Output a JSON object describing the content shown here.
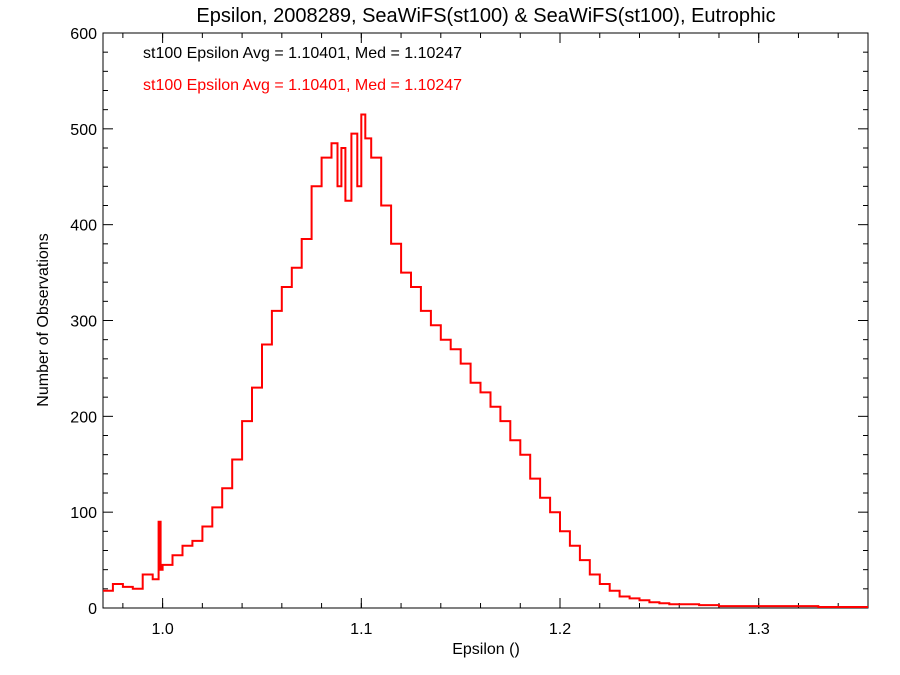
{
  "chart_data": {
    "type": "line",
    "title": "Epsilon, 2008289, SeaWiFS(st100) & SeaWiFS(st100), Eutrophic",
    "xlabel": "Epsilon ()",
    "ylabel": "Number of Observations",
    "xlim": [
      0.97,
      1.355
    ],
    "ylim": [
      0,
      600
    ],
    "x_ticks": [
      1.0,
      1.1,
      1.2,
      1.3
    ],
    "x_tick_labels": [
      "1.0",
      "1.1",
      "1.2",
      "1.3"
    ],
    "y_ticks": [
      0,
      100,
      200,
      300,
      400,
      500,
      600
    ],
    "y_tick_labels": [
      "0",
      "100",
      "200",
      "300",
      "400",
      "500",
      "600"
    ],
    "grid": false,
    "legend": [
      {
        "text": "st100 Epsilon Avg = 1.10401, Med = 1.10247",
        "color": "#000000"
      },
      {
        "text": "st100 Epsilon Avg = 1.10401, Med = 1.10247",
        "color": "#ff0000"
      }
    ],
    "legend_position": "top-left",
    "series": [
      {
        "color": "#ff0000",
        "step": true,
        "x": [
          0.97,
          0.975,
          0.98,
          0.985,
          0.99,
          0.995,
          0.998,
          0.999,
          1.0,
          1.005,
          1.01,
          1.015,
          1.02,
          1.025,
          1.03,
          1.035,
          1.04,
          1.045,
          1.05,
          1.055,
          1.06,
          1.065,
          1.07,
          1.075,
          1.08,
          1.085,
          1.088,
          1.09,
          1.092,
          1.095,
          1.098,
          1.1,
          1.102,
          1.105,
          1.11,
          1.115,
          1.12,
          1.125,
          1.13,
          1.135,
          1.14,
          1.145,
          1.15,
          1.155,
          1.16,
          1.165,
          1.17,
          1.175,
          1.18,
          1.185,
          1.19,
          1.195,
          1.2,
          1.205,
          1.21,
          1.215,
          1.22,
          1.225,
          1.23,
          1.235,
          1.24,
          1.245,
          1.25,
          1.255,
          1.26,
          1.27,
          1.28,
          1.29,
          1.3,
          1.31,
          1.32,
          1.33,
          1.34,
          1.35,
          1.355
        ],
        "y": [
          18,
          25,
          22,
          20,
          35,
          30,
          90,
          40,
          45,
          55,
          65,
          70,
          85,
          105,
          125,
          155,
          195,
          230,
          275,
          310,
          335,
          355,
          385,
          440,
          470,
          485,
          440,
          480,
          425,
          495,
          440,
          515,
          490,
          470,
          420,
          380,
          350,
          335,
          310,
          295,
          280,
          270,
          255,
          235,
          225,
          210,
          195,
          175,
          160,
          135,
          115,
          100,
          80,
          65,
          50,
          35,
          25,
          18,
          12,
          10,
          8,
          6,
          5,
          4,
          4,
          3,
          2,
          2,
          2,
          2,
          2,
          1,
          1,
          1,
          1
        ]
      }
    ]
  }
}
